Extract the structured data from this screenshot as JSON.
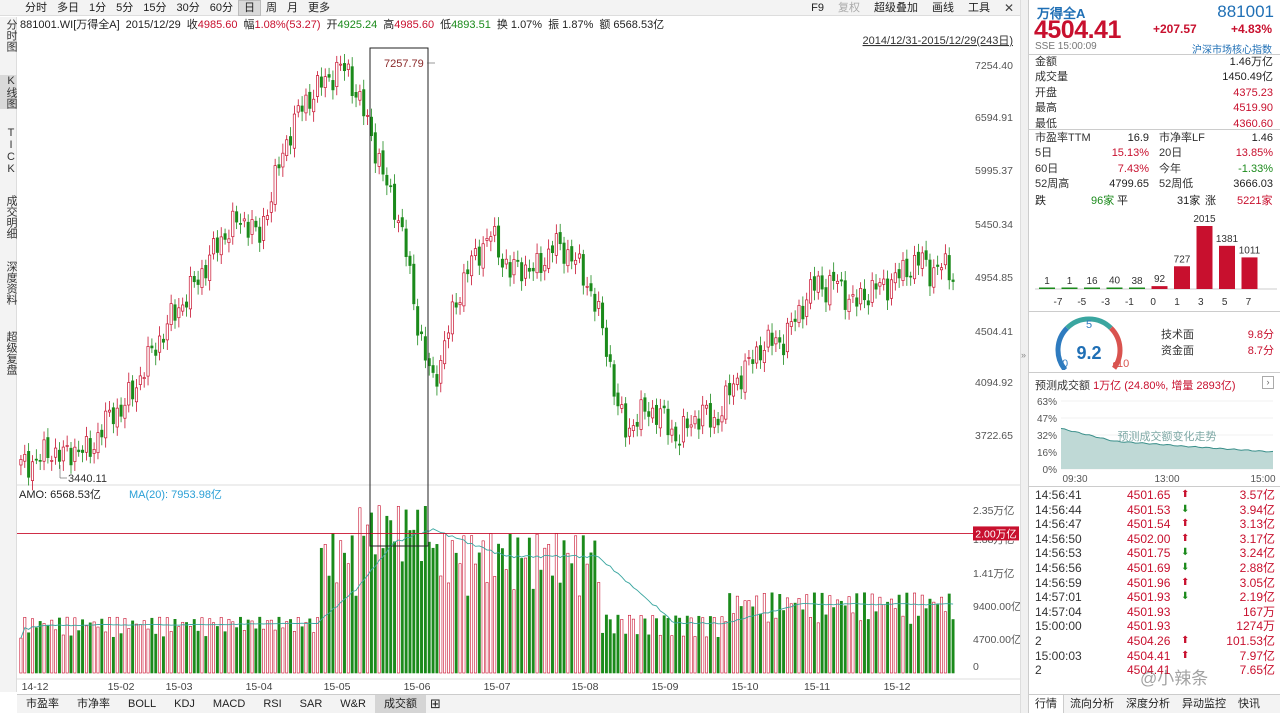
{
  "toolbar": {
    "periods": [
      "分时",
      "多日",
      "1分",
      "5分",
      "15分",
      "30分",
      "60分",
      "日",
      "周",
      "月",
      "更多"
    ],
    "active_period": "日",
    "right_items": [
      "F9",
      "复权",
      "超级叠加",
      "画线",
      "工具"
    ],
    "close": "✕"
  },
  "info": {
    "code_name": "881001.WI[万得全A]",
    "date": "2015/12/29",
    "close_label": "收",
    "close_value": "4985.60",
    "chg_label": "幅",
    "chg_value": "1.08%(53.27)",
    "open_label": "开",
    "open_value": "4925.24",
    "high_label": "高",
    "high_value": "4985.60",
    "low_label": "低",
    "low_value": "4893.51",
    "turnover_label": "换",
    "turnover_value": "1.07%",
    "amp_label": "振",
    "amp_value": "1.87%",
    "amount_label": "额",
    "amount_value": "6568.53亿"
  },
  "left_nav": [
    "分时图",
    "K线图",
    "TICK",
    "成交明细",
    "深度资料",
    "超级复盘"
  ],
  "left_nav_active": "K线图",
  "chart_data": {
    "type": "candlestick",
    "range_label": "2014/12/31-2015/12/29(243日)",
    "price_ticks": [
      "7254.40",
      "6594.91",
      "5995.37",
      "5450.34",
      "4954.85",
      "4504.41",
      "4094.92",
      "3722.65"
    ],
    "price_tick_values": [
      7254.4,
      6594.91,
      5995.37,
      5450.34,
      4954.85,
      4504.41,
      4094.92,
      3722.65
    ],
    "high_marker": "7257.79",
    "low_marker": "3440.11",
    "x_ticks": [
      "14-12",
      "15-02",
      "15-03",
      "15-04",
      "15-05",
      "15-06",
      "15-07",
      "15-08",
      "15-09",
      "15-10",
      "15-11",
      "15-12"
    ],
    "volume": {
      "amo_label": "AMO:",
      "amo_value": "6568.53亿",
      "ma_label": "MA(20):",
      "ma_value": "7953.98亿",
      "ticks": [
        "2.35万亿",
        "1.88万亿",
        "1.41万亿",
        "9400.00亿",
        "4700.00亿",
        "0"
      ],
      "tick_values": [
        23500,
        18800,
        14100,
        9400,
        4700,
        0
      ],
      "ref_line_label": "2.00万亿",
      "ref_line_value": 20000
    }
  },
  "indicator_tabs": [
    "市盈率",
    "市净率",
    "BOLL",
    "KDJ",
    "MACD",
    "RSI",
    "SAR",
    "W&R",
    "成交额"
  ],
  "indicator_active": "成交额",
  "quote": {
    "name": "万得全A",
    "code": "881001",
    "price": "4504.41",
    "change": "+207.57",
    "change_pct": "+4.83%",
    "exchange_time": "SSE  15:00:09",
    "core_index": "沪深市场核心指数",
    "rows": [
      {
        "k": "金额",
        "v": "1.46万亿",
        "c": "blk"
      },
      {
        "k": "成交量",
        "v": "1450.49亿",
        "c": "blk"
      },
      {
        "k": "开盘",
        "v": "4375.23",
        "c": "up"
      },
      {
        "k": "最高",
        "v": "4519.90",
        "c": "up"
      },
      {
        "k": "最低",
        "v": "4360.60",
        "c": "up"
      }
    ],
    "pairs": [
      {
        "k1": "市盈率TTM",
        "v1": "16.9",
        "c1": "blk",
        "k2": "市净率LF",
        "v2": "1.46",
        "c2": "blk"
      },
      {
        "k1": "5日",
        "v1": "15.13%",
        "c1": "up",
        "k2": "20日",
        "v2": "13.85%",
        "c2": "up"
      },
      {
        "k1": "60日",
        "v1": "7.43%",
        "c1": "up",
        "k2": "今年",
        "v2": "-1.33%",
        "c2": "down"
      },
      {
        "k1": "52周高",
        "v1": "4799.65",
        "c1": "blk",
        "k2": "52周低",
        "v2": "3666.03",
        "c2": "blk"
      }
    ],
    "breadth": {
      "down_label": "跌",
      "down_value": "96家",
      "flat_label": "平",
      "flat_value": "31家",
      "up_label": "涨",
      "up_value": "5221家"
    },
    "distribution": {
      "bins": [
        "-7",
        "-5",
        "-3",
        "-1",
        "0",
        "1",
        "3",
        "5",
        "7"
      ],
      "counts": [
        1,
        1,
        16,
        40,
        38,
        92,
        727,
        2015,
        1381,
        1011
      ]
    },
    "gauge": {
      "score": "9.2",
      "min": "0",
      "mid": "5",
      "max": "10"
    },
    "tech_label": "技术面",
    "tech_value": "9.8分",
    "fund_label": "资金面",
    "fund_value": "8.7分",
    "predict_label": "预测成交额",
    "predict_value": "1万亿",
    "predict_detail": "(24.80%, 增量 2893亿)",
    "predict_more": "›",
    "predict_chart": {
      "y_ticks": [
        "63%",
        "47%",
        "32%",
        "16%",
        "0%"
      ],
      "x_ticks": [
        "09:30",
        "13:00",
        "15:00"
      ],
      "watermark": "预测成交额变化走势"
    },
    "trades": [
      {
        "t": "14:56:41",
        "p": "4501.65",
        "a": "up",
        "v": "3.57亿"
      },
      {
        "t": "14:56:44",
        "p": "4501.53",
        "a": "down",
        "v": "3.94亿"
      },
      {
        "t": "14:56:47",
        "p": "4501.54",
        "a": "up",
        "v": "3.13亿"
      },
      {
        "t": "14:56:50",
        "p": "4502.00",
        "a": "up",
        "v": "3.17亿"
      },
      {
        "t": "14:56:53",
        "p": "4501.75",
        "a": "down",
        "v": "3.24亿"
      },
      {
        "t": "14:56:56",
        "p": "4501.69",
        "a": "down",
        "v": "2.88亿"
      },
      {
        "t": "14:56:59",
        "p": "4501.96",
        "a": "up",
        "v": "3.05亿"
      },
      {
        "t": "14:57:01",
        "p": "4501.93",
        "a": "down",
        "v": "2.19亿"
      },
      {
        "t": "14:57:04",
        "p": "4501.93",
        "a": "",
        "v": "167万"
      },
      {
        "t": "15:00:00",
        "p": "4501.93",
        "a": "",
        "v": "1274万"
      },
      {
        "t": "2",
        "p": "4504.26",
        "a": "up",
        "v": "101.53亿"
      },
      {
        "t": "15:00:03",
        "p": "4504.41",
        "a": "up",
        "v": "7.97亿"
      },
      {
        "t": "2",
        "p": "4504.41",
        "a": "",
        "v": "7.65亿"
      }
    ],
    "tabs": [
      "行情",
      "流向分析",
      "深度分析",
      "异动监控",
      "快讯"
    ],
    "active_tab": "行情"
  },
  "watermark": "@小辣条",
  "colors": {
    "up": "#c8102e",
    "down": "#1b8a1b",
    "ma": "#3aa6a0",
    "accent": "#1f6fb5"
  }
}
